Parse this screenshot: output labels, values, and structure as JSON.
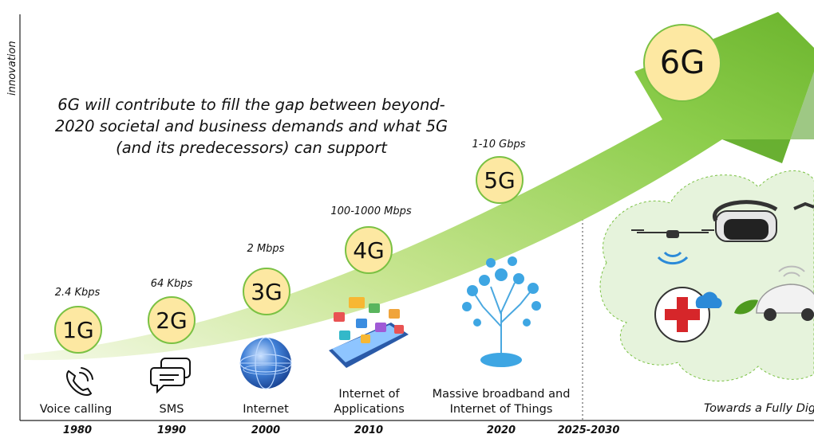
{
  "axis": {
    "y_label": "innovation"
  },
  "headline": "6G will contribute to fill the gap between beyond-2020 societal and business demands and what 5G (and its predecessors) can support",
  "headline_lines": [
    "6G will contribute to fill the gap between beyond-",
    "2020 societal and business demands and what 5G",
    "(and its predecessors) can support"
  ],
  "generations": [
    {
      "label": "1G",
      "speed": "2.4 Kbps",
      "tech": [
        "Voice calling"
      ],
      "year": "1980",
      "icon": "phone-icon"
    },
    {
      "label": "2G",
      "speed": "64 Kbps",
      "tech": [
        "SMS"
      ],
      "year": "1990",
      "icon": "sms-icon"
    },
    {
      "label": "3G",
      "speed": "2 Mbps",
      "tech": [
        "Internet"
      ],
      "year": "2000",
      "icon": "globe-icon"
    },
    {
      "label": "4G",
      "speed": "100-1000 Mbps",
      "tech": [
        "Internet of",
        "Applications"
      ],
      "year": "2010",
      "icon": "smartphone-apps-icon"
    },
    {
      "label": "5G",
      "speed": "1-10 Gbps",
      "tech": [
        "Massive broadband and",
        "Internet of Things"
      ],
      "year": "2020",
      "icon": "iot-tree-icon"
    },
    {
      "label": "6G",
      "year": "2025-2030"
    }
  ],
  "future": {
    "caption": "Towards a Fully Dig"
  },
  "colors": {
    "arrow": "#7ac143",
    "arrow_dark": "#4e9a1f",
    "circle_fill": "#fde8a2",
    "circle_border": "#7ac143",
    "cloud": "#e6f3dc"
  }
}
